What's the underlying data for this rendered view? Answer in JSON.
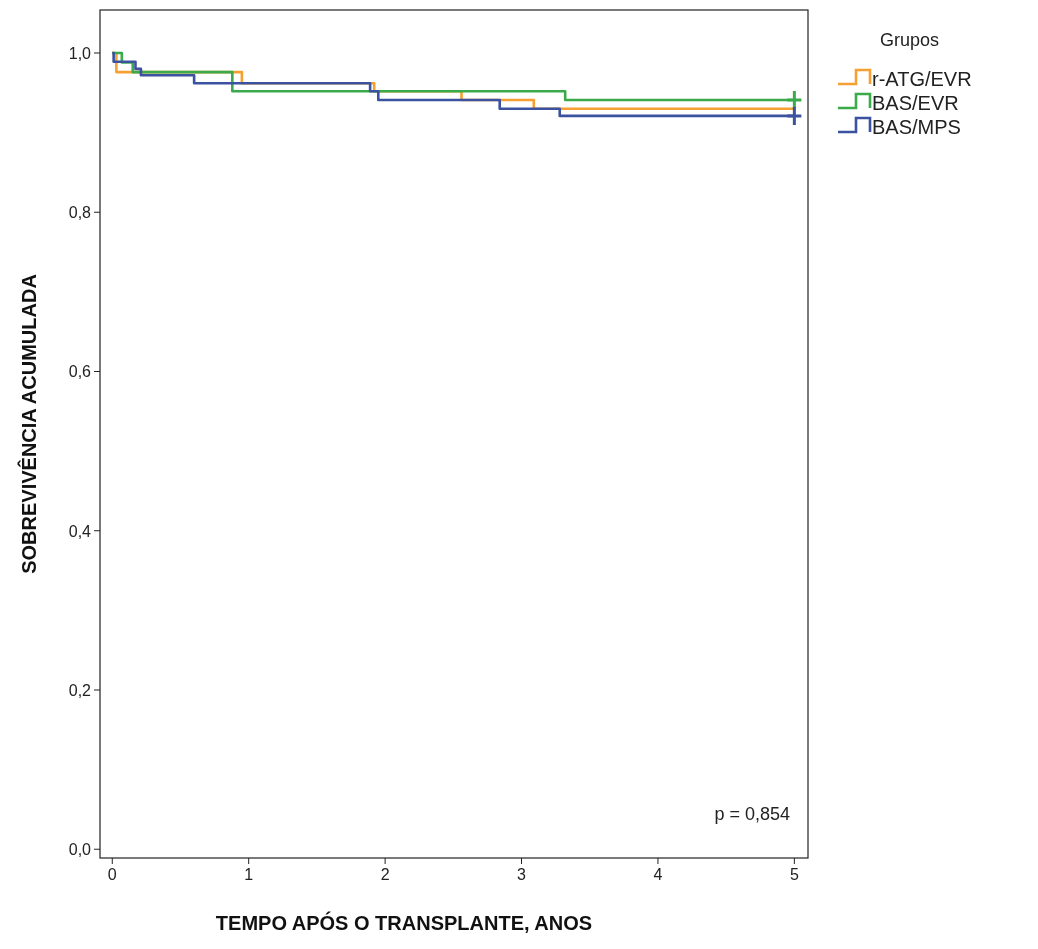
{
  "chart_data": {
    "type": "step",
    "xlabel": "TEMPO APÓS O TRANSPLANTE, ANOS",
    "ylabel": "SOBREVIVÊNCIA ACUMULADA",
    "legend_title": "Grupos",
    "legend": "top right",
    "grid": false,
    "line_style": "solid",
    "xlim": [
      -0.09,
      5.1
    ],
    "xticks": [
      0,
      1,
      2,
      3,
      4,
      5
    ],
    "ylim": [
      -0.011,
      1.054
    ],
    "yticks": [
      {
        "value": 0,
        "label": "0,0"
      },
      {
        "value": 0.2,
        "label": "0,2"
      },
      {
        "value": 0.4,
        "label": "0,4"
      },
      {
        "value": 0.6,
        "label": "0,6"
      },
      {
        "value": 0.8,
        "label": "0,8"
      },
      {
        "value": 1,
        "label": "1,0"
      }
    ],
    "annotations": [
      "p = 0,854"
    ],
    "series": [
      {
        "name": "r-ATG/EVR",
        "color": "#f5a030",
        "x": [
          0,
          0.03,
          0.95,
          1.92,
          2.56,
          3.09,
          5
        ],
        "values": [
          1,
          0.976,
          0.962,
          0.952,
          0.941,
          0.93,
          0.93
        ]
      },
      {
        "name": "BAS/EVR",
        "color": "#3aaa4a",
        "x": [
          0,
          0.07,
          0.15,
          0.88,
          3.32,
          5
        ],
        "values": [
          1,
          0.988,
          0.976,
          0.952,
          0.941,
          0.941
        ]
      },
      {
        "name": "BAS/MPS",
        "color": "#3a52a0",
        "x": [
          0,
          0.01,
          0.17,
          0.21,
          0.6,
          1.89,
          1.95,
          2.84,
          3.28,
          5
        ],
        "values": [
          1,
          0.989,
          0.98,
          0.972,
          0.962,
          0.952,
          0.941,
          0.93,
          0.921,
          0.921
        ]
      },
      {
        "type": "scatter",
        "marker": "cross",
        "color": "#3aaa4a",
        "x": [
          5
        ],
        "values": [
          0.941
        ]
      },
      {
        "type": "scatter",
        "marker": "cross",
        "color": "#3a52a0",
        "x": [
          5
        ],
        "values": [
          0.921
        ]
      }
    ]
  }
}
